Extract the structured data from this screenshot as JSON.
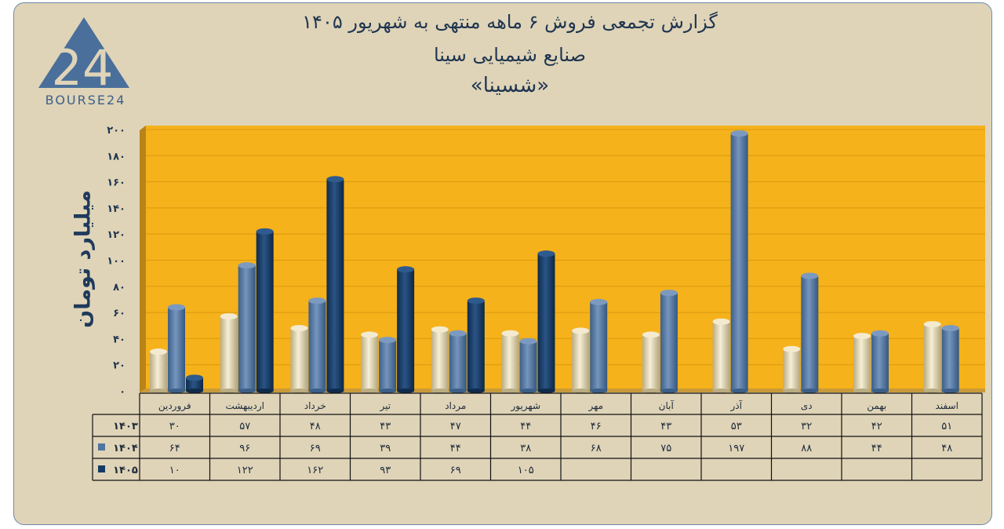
{
  "title_line1": "گزارش تجمعی فروش ۶ ماهه منتهی به شهریور ۱۴۰۵",
  "title_line2": "صنایع شیمیایی سینا",
  "title_line3": "«شسینا»",
  "logo_text": "BOURSE24",
  "logo_mark": "24",
  "colors": {
    "plot_bg": "#f6b21a",
    "frame_bg": "#dfd4b8",
    "s1403": "#e6dbb8",
    "s1404": "#4f74a0",
    "s1405": "#163a63"
  },
  "chart_data": {
    "type": "bar",
    "ylabel": "میلیارد تومان",
    "ylim": [
      0,
      200
    ],
    "yticks": [
      "۰",
      "۲۰",
      "۴۰",
      "۶۰",
      "۸۰",
      "۱۰۰",
      "۱۲۰",
      "۱۴۰",
      "۱۶۰",
      "۱۸۰",
      "۲۰۰"
    ],
    "categories": [
      "فروردین",
      "اردیبهشت",
      "خرداد",
      "تیر",
      "مرداد",
      "شهریور",
      "مهر",
      "آبان",
      "آذر",
      "دی",
      "بهمن",
      "اسفند"
    ],
    "series": [
      {
        "name": "۱۴۰۳",
        "values": [
          30,
          57,
          48,
          43,
          47,
          44,
          46,
          43,
          53,
          32,
          42,
          51
        ],
        "labels": [
          "۳۰",
          "۵۷",
          "۴۸",
          "۴۳",
          "۴۷",
          "۴۴",
          "۴۶",
          "۴۳",
          "۵۳",
          "۳۲",
          "۴۲",
          "۵۱"
        ]
      },
      {
        "name": "۱۴۰۴",
        "values": [
          64,
          96,
          69,
          39,
          44,
          38,
          68,
          75,
          197,
          88,
          44,
          48
        ],
        "labels": [
          "۶۴",
          "۹۶",
          "۶۹",
          "۳۹",
          "۴۴",
          "۳۸",
          "۶۸",
          "۷۵",
          "۱۹۷",
          "۸۸",
          "۴۴",
          "۴۸"
        ]
      },
      {
        "name": "۱۴۰۵",
        "values": [
          10,
          122,
          162,
          93,
          69,
          105,
          null,
          null,
          null,
          null,
          null,
          null
        ],
        "labels": [
          "۱۰",
          "۱۲۲",
          "۱۶۲",
          "۹۳",
          "۶۹",
          "۱۰۵",
          "",
          "",
          "",
          "",
          "",
          ""
        ]
      }
    ]
  }
}
